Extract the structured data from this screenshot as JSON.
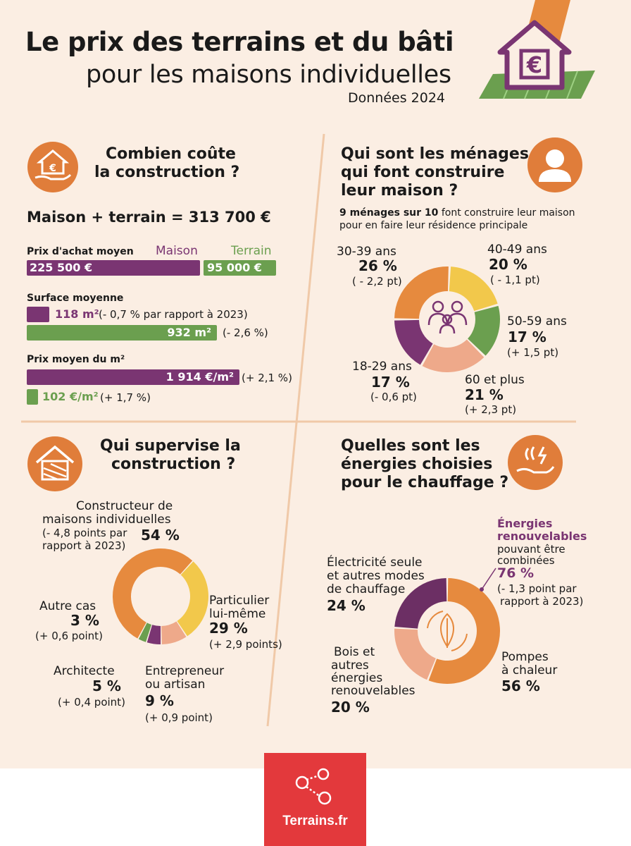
{
  "header": {
    "title_line1": "Le prix des terrains et du bâti",
    "title_line2": "pour les maisons individuelles",
    "subtitle": "Données 2024",
    "icon": "house-euro-icon"
  },
  "cost": {
    "title_line1": "Combien coûte",
    "title_line2": "la construction ?",
    "total": "Maison + terrain = 313 700 €",
    "price_label": "Prix d'achat moyen",
    "legend_house": "Maison",
    "legend_land": "Terrain",
    "house_price": "225 500 €",
    "land_price": "95 000 €",
    "surface_label": "Surface moyenne",
    "house_surface": "118 m²",
    "house_surface_note": "(- 0,7 % par rapport à 2023)",
    "land_surface": "932 m²",
    "land_surface_note": "(- 2,6 %)",
    "m2_label": "Prix moyen du m²",
    "house_m2": "1 914 €/m²",
    "house_m2_note": "(+ 2,1 %)",
    "land_m2": "102 €/m²",
    "land_m2_note": "(+ 1,7 %)"
  },
  "households": {
    "title_line1": "Qui sont les ménages",
    "title_line2": "qui font construire",
    "title_line3": "leur maison ?",
    "note_bold": "9 ménages sur 10",
    "note_rest": " font construire leur maison",
    "note_line2": "pour en faire leur résidence principale"
  },
  "supervision": {
    "title_line1": "Qui supervise la",
    "title_line2": "construction ?"
  },
  "heating": {
    "title_line1": "Quelles sont les",
    "title_line2": "énergies choisies",
    "title_line3": "pour le chauffage ?",
    "renew_title1": "Énergies",
    "renew_title2": "renouvelables",
    "renew_sub1": "pouvant être",
    "renew_sub2": "combinées",
    "renew_pct": "76 %",
    "renew_note1": "(- 1,3 point par",
    "renew_note2": "rapport à 2023)"
  },
  "footer": {
    "logo_text": "Terrains.fr"
  },
  "colors": {
    "purple": "#7a3572",
    "green": "#6b9f4f",
    "orange": "#e68a3e",
    "yellow": "#f2c84b",
    "salmon": "#eea98a",
    "dark_purple": "#6c2f64"
  },
  "chart_data": [
    {
      "type": "bar",
      "title": "Prix d'achat moyen",
      "categories": [
        "Maison",
        "Terrain"
      ],
      "values": [
        225500,
        95000
      ],
      "unit": "€"
    },
    {
      "type": "bar",
      "title": "Surface moyenne",
      "categories": [
        "Maison",
        "Terrain"
      ],
      "values": [
        118,
        932
      ],
      "unit": "m²"
    },
    {
      "type": "bar",
      "title": "Prix moyen du m²",
      "categories": [
        "Maison",
        "Terrain"
      ],
      "values": [
        1914,
        102
      ],
      "unit": "€/m²"
    },
    {
      "type": "pie",
      "id": "ages",
      "slices": [
        {
          "label": "30-39 ans",
          "value": 26,
          "pct": "26 %",
          "note": "( - 2,2 pt)",
          "color": "#e68a3e"
        },
        {
          "label": "40-49 ans",
          "value": 20,
          "pct": "20 %",
          "note": "( - 1,1 pt)",
          "color": "#f2c84b"
        },
        {
          "label": "50-59 ans",
          "value": 17,
          "pct": "17 %",
          "note": "(+ 1,5 pt)",
          "color": "#6b9f4f"
        },
        {
          "label": "60 et plus",
          "value": 21,
          "pct": "21 %",
          "note": "(+ 2,3 pt)",
          "color": "#eea98a"
        },
        {
          "label": "18-29 ans",
          "value": 17,
          "pct": "17 %",
          "note": "(- 0,6 pt)",
          "color": "#7a3572"
        }
      ]
    },
    {
      "type": "pie",
      "id": "supervision",
      "slices": [
        {
          "label": "Constructeur de maisons individuelles",
          "value": 54,
          "pct": "54 %",
          "note": "(- 4,8 points par rapport à 2023)",
          "color": "#e68a3e"
        },
        {
          "label": "Particulier lui-même",
          "value": 29,
          "pct": "29 %",
          "note": "(+ 2,9 points)",
          "color": "#f2c84b"
        },
        {
          "label": "Entrepreneur ou artisan",
          "value": 9,
          "pct": "9 %",
          "note": "(+ 0,9 point)",
          "color": "#eea98a"
        },
        {
          "label": "Architecte",
          "value": 5,
          "pct": "5 %",
          "note": "(+ 0,4 point)",
          "color": "#7a3572"
        },
        {
          "label": "Autre cas",
          "value": 3,
          "pct": "3 %",
          "note": "(+ 0,6 point)",
          "color": "#6b9f4f"
        }
      ]
    },
    {
      "type": "pie",
      "id": "heating",
      "slices": [
        {
          "label": "Pompes à chaleur",
          "value": 56,
          "pct": "56 %",
          "color": "#e68a3e"
        },
        {
          "label": "Bois et autres énergies renouvelables",
          "value": 20,
          "pct": "20 %",
          "color": "#eea98a"
        },
        {
          "label": "Électricité seule et autres modes de chauffage",
          "value": 24,
          "pct": "24 %",
          "color": "#6c2f64"
        }
      ]
    }
  ]
}
